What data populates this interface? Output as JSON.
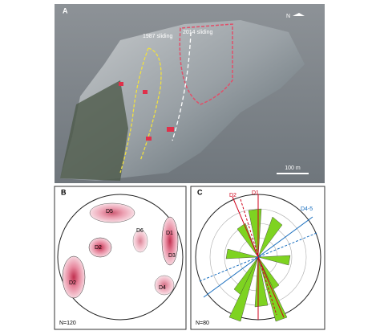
{
  "panel_a": {
    "label": "A",
    "annotations": [
      "1987 sliding",
      "2014 sliding"
    ],
    "scale": "100 m",
    "north": "N"
  },
  "panel_b": {
    "label": "B",
    "sets": [
      "D5",
      "D6",
      "D2",
      "D1",
      "D3",
      "D4",
      "D2"
    ],
    "count": "N=120"
  },
  "panel_c": {
    "label": "C",
    "sets": [
      "D2",
      "D1",
      "D4-5"
    ],
    "count": "N=80"
  }
}
